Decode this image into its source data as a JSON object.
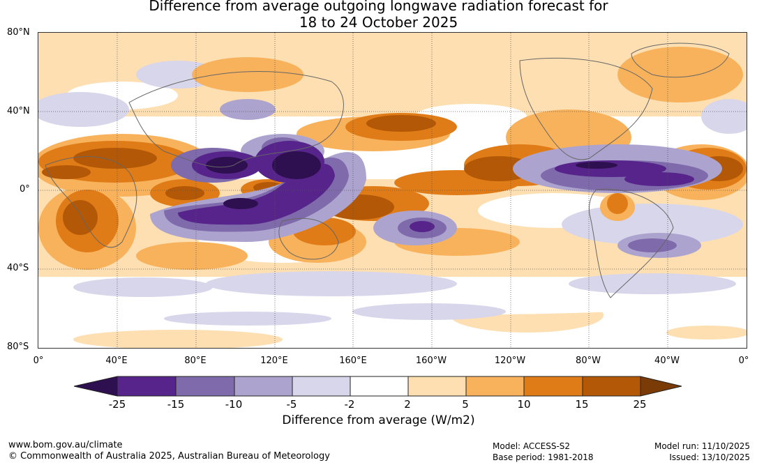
{
  "title": {
    "line1": "Difference from average outgoing longwave radiation forecast for",
    "line2": "18 to 24 October 2025"
  },
  "lat_labels": [
    "80°N",
    "40°N",
    "0°",
    "40°S",
    "80°S"
  ],
  "lon_labels": [
    "0°",
    "40°E",
    "80°E",
    "120°E",
    "160°E",
    "160°W",
    "120°W",
    "80°W",
    "40°W",
    "0°"
  ],
  "colorbar": {
    "ticks": [
      "-25",
      "-15",
      "-10",
      "-5",
      "-2",
      "2",
      "5",
      "10",
      "15",
      "25"
    ],
    "colors": [
      "#2e0f4f",
      "#56248a",
      "#7f6aab",
      "#aca4cf",
      "#d7d6eb",
      "#ffffff",
      "#fddfb2",
      "#f8b25c",
      "#e07c18",
      "#b35806",
      "#7a3b06"
    ],
    "label": "Difference from average (W/m2)"
  },
  "footer": {
    "website": "www.bom.gov.au/climate",
    "copyright": "© Commonwealth of Australia 2025, Australian Bureau of Meteorology",
    "model": "Model: ACCESS-S2",
    "base_period": "Base period: 1981-2018",
    "model_run": "Model run: 11/10/2025",
    "issued": "Issued: 13/10/2025"
  }
}
